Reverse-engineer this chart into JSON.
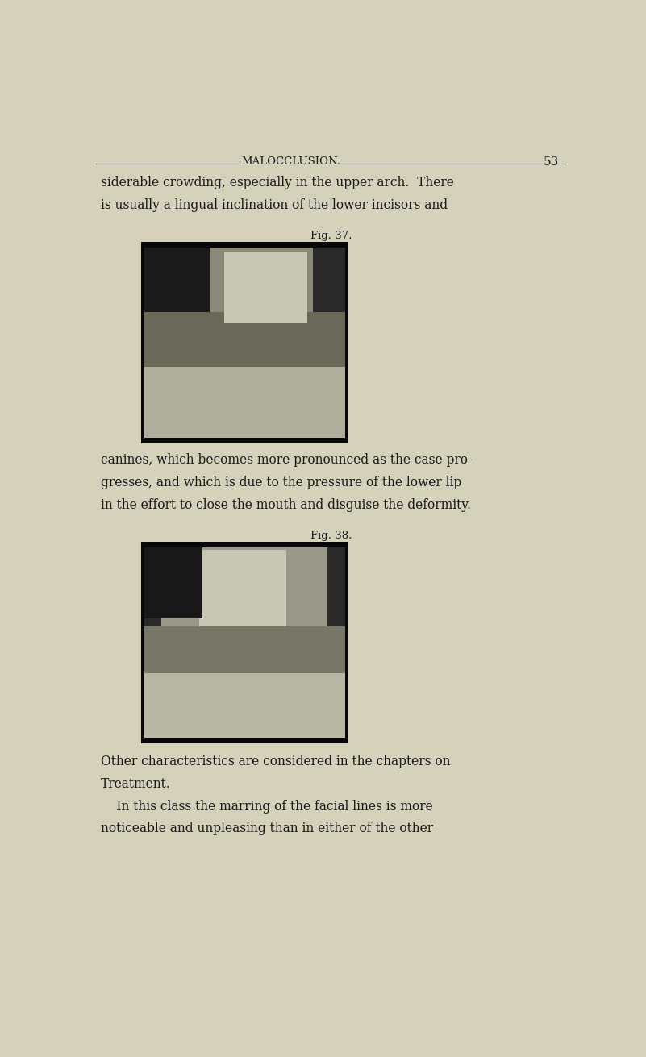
{
  "background_color": "#d4d2bb",
  "page_width": 8.01,
  "page_height": 13.11,
  "header_text": "MALOCCLUSION.",
  "header_page_num": "53",
  "text_color": "#1a1a1a",
  "fig37_caption": "Fig. 37.",
  "fig38_caption": "Fig. 38.",
  "line1": "siderable crowding, especially in the upper arch.  There",
  "line2": "is usually a lingual inclination of the lower incisors and",
  "line3": "canines, which becomes more pronounced as the case pro-",
  "line4": "gresses, and which is due to the pressure of the lower lip",
  "line5": "in the effort to close the mouth and disguise the deformity.",
  "line6": "Other characteristics are considered in the chapters on",
  "line7": "Treatment.",
  "line8": "    In this class the marring of the facial lines is more",
  "line9": "noticeable and unpleasing than in either of the other"
}
